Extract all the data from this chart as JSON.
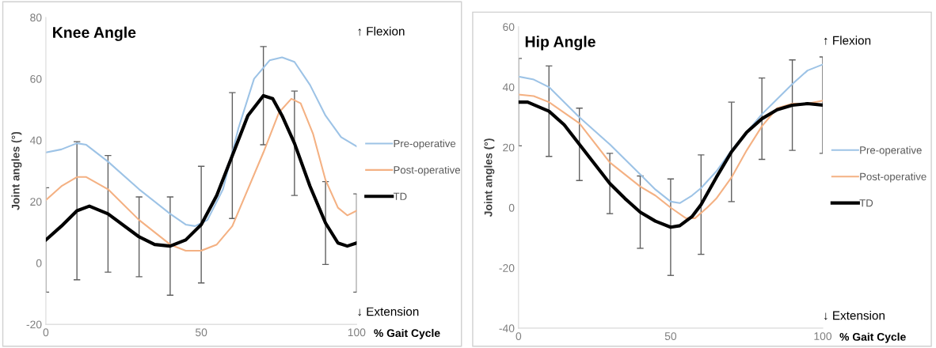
{
  "chart_data": [
    {
      "type": "line",
      "title": "Knee Angle",
      "xlabel": "% Gait Cycle",
      "ylabel": "Joint angles (°)",
      "xlim": [
        0,
        100
      ],
      "xticks": [
        0,
        50,
        100
      ],
      "ylim": [
        -20,
        80
      ],
      "yticks": [
        -20,
        0,
        20,
        40,
        60,
        80
      ],
      "grid": false,
      "legend": "right",
      "marker": "none",
      "annotations": [
        "↑ Flexion",
        "↓ Extension"
      ],
      "series": [
        {
          "name": "Pre-operative",
          "color": "#9dc3e6",
          "x": [
            0,
            5,
            10,
            13,
            20,
            30,
            40,
            45,
            48,
            52,
            57,
            62,
            67,
            72,
            76,
            80,
            85,
            90,
            95,
            100
          ],
          "values": [
            36,
            37,
            39,
            38.5,
            33,
            24,
            16,
            12.5,
            12,
            14,
            24,
            44,
            60,
            66,
            67,
            65.5,
            58,
            48,
            41,
            38
          ]
        },
        {
          "name": "Post-operative",
          "color": "#f4b183",
          "x": [
            0,
            5,
            10,
            13,
            20,
            30,
            40,
            45,
            50,
            55,
            60,
            65,
            70,
            75,
            79,
            82,
            86,
            90,
            94,
            97,
            100
          ],
          "values": [
            20.5,
            25,
            28,
            28,
            24,
            14,
            6,
            4,
            4,
            6,
            12,
            24,
            36,
            49,
            53.5,
            52,
            42,
            27,
            18,
            15.5,
            17
          ]
        },
        {
          "name": "TD",
          "color": "#000000",
          "x": [
            0,
            5,
            10,
            14,
            20,
            30,
            35,
            40,
            45,
            50,
            55,
            60,
            65,
            70,
            73,
            76,
            80,
            85,
            90,
            94,
            97,
            100
          ],
          "values": [
            7.5,
            12,
            17,
            18.5,
            16,
            8.5,
            6,
            5.5,
            7.5,
            12.5,
            22,
            35,
            48,
            54.5,
            53.5,
            48,
            39,
            25,
            13,
            6.5,
            5.5,
            6.5
          ],
          "errors": [
            17,
            null,
            22.5,
            null,
            19,
            13,
            null,
            16,
            null,
            19,
            null,
            20.5,
            null,
            16,
            null,
            null,
            17,
            null,
            13.5,
            null,
            null,
            16
          ]
        }
      ]
    },
    {
      "type": "line",
      "title": "Hip Angle",
      "xlabel": "% Gait Cycle",
      "ylabel": "Joint angles (°)",
      "xlim": [
        0,
        100
      ],
      "xticks": [
        0,
        50,
        100
      ],
      "ylim": [
        -40,
        60
      ],
      "yticks": [
        -40,
        -20,
        0,
        20,
        40,
        60
      ],
      "grid": false,
      "legend": "right",
      "marker": "none",
      "annotations": [
        "↑ Flexion",
        "↓ Extension"
      ],
      "series": [
        {
          "name": "Pre-operative",
          "color": "#9dc3e6",
          "x": [
            0,
            5,
            10,
            20,
            30,
            40,
            45,
            50,
            53,
            57,
            60,
            65,
            70,
            75,
            80,
            85,
            90,
            95,
            100
          ],
          "values": [
            43.5,
            42.5,
            40,
            30,
            21,
            11,
            6,
            2,
            1.5,
            4,
            6.5,
            12,
            19,
            25,
            31,
            36,
            41,
            45.5,
            47.5
          ]
        },
        {
          "name": "Post-operative",
          "color": "#f4b183",
          "x": [
            0,
            5,
            10,
            20,
            30,
            40,
            45,
            50,
            55,
            58,
            62,
            65,
            70,
            75,
            80,
            85,
            90,
            95,
            100
          ],
          "values": [
            37.5,
            37,
            35,
            28,
            15,
            7,
            4,
            0,
            -3.5,
            -3.5,
            0,
            3,
            10,
            19,
            27,
            33,
            34.5,
            34.5,
            35.5
          ]
        },
        {
          "name": "TD",
          "color": "#000000",
          "x": [
            0,
            3,
            10,
            15,
            20,
            25,
            30,
            35,
            40,
            45,
            50,
            53,
            57,
            60,
            65,
            70,
            75,
            80,
            85,
            90,
            95,
            100
          ],
          "values": [
            35,
            35,
            32,
            27.5,
            21,
            14.5,
            8,
            3,
            -1.5,
            -4.5,
            -6.5,
            -6,
            -3,
            1,
            10,
            18.5,
            25,
            29.5,
            32.5,
            34,
            34.5,
            34
          ],
          "errors": [
            14.5,
            null,
            15,
            null,
            12,
            null,
            10,
            null,
            12,
            null,
            16,
            null,
            null,
            16.5,
            null,
            16.5,
            null,
            13.5,
            null,
            15,
            null,
            16
          ]
        }
      ]
    }
  ]
}
